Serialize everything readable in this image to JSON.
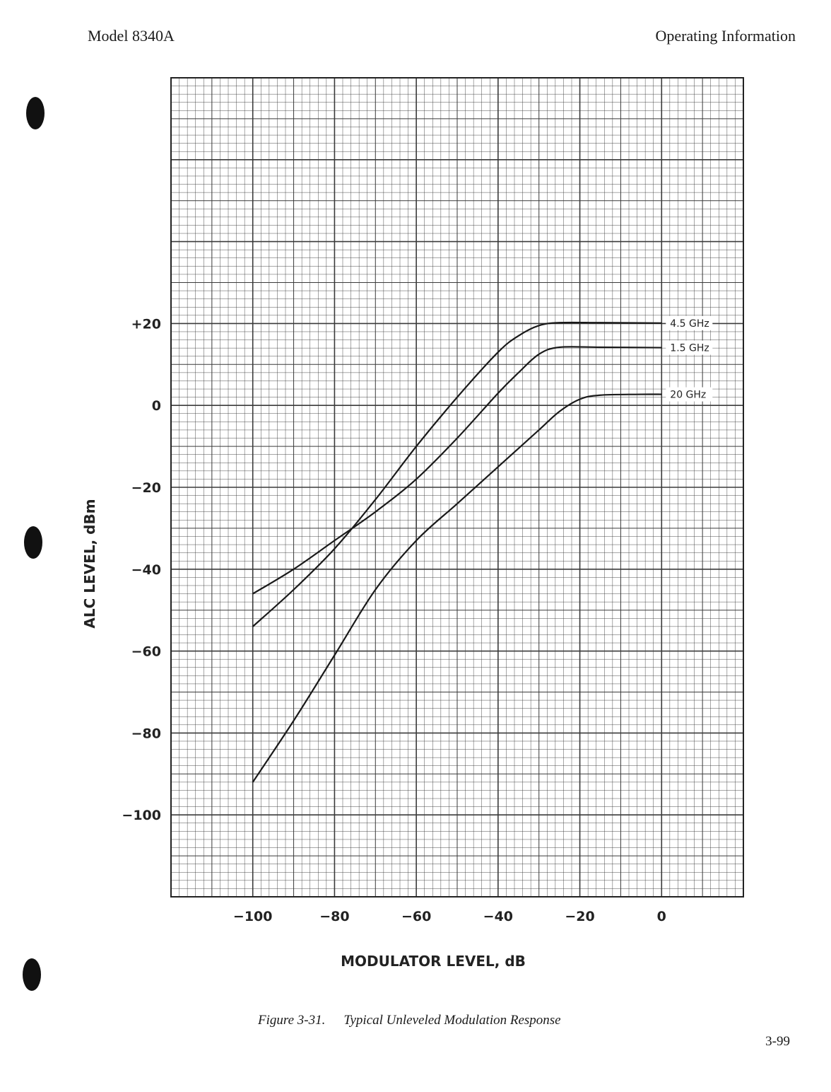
{
  "header": {
    "model": "Model 8340A",
    "section": "Operating Information"
  },
  "caption": {
    "number": "Figure 3-31.",
    "text": "Typical Unleveled Modulation Response"
  },
  "page_number": "3-99",
  "chart_data": {
    "type": "line",
    "title": "",
    "xlabel": "MODULATOR LEVEL, dB",
    "ylabel": "ALC LEVEL, dBm",
    "xlim": [
      -120,
      20
    ],
    "ylim": [
      -120,
      80
    ],
    "x_ticks": [
      -100,
      -80,
      -60,
      -40,
      -20,
      0
    ],
    "x_tick_labels": [
      "−100",
      "−80",
      "−60",
      "−40",
      "−20",
      "0"
    ],
    "y_ticks": [
      20,
      0,
      -20,
      -40,
      -60,
      -80,
      -100
    ],
    "y_tick_labels": [
      "+20",
      "0",
      "−20",
      "−40",
      "−60",
      "−80",
      "−100"
    ],
    "grid": true,
    "line_color": "#1a1a1a",
    "grid_color": "#3a3a3a",
    "series": [
      {
        "name": "4.5 GHz",
        "points": [
          [
            -100,
            -54
          ],
          [
            -90,
            -45
          ],
          [
            -80,
            -35
          ],
          [
            -70,
            -23
          ],
          [
            -60,
            -10
          ],
          [
            -50,
            2
          ],
          [
            -40,
            13
          ],
          [
            -35,
            17
          ],
          [
            -30,
            19.5
          ],
          [
            -25,
            20.2
          ],
          [
            -15,
            20.2
          ],
          [
            0,
            20.1
          ]
        ]
      },
      {
        "name": "1.5 GHz",
        "points": [
          [
            -100,
            -46
          ],
          [
            -90,
            -40
          ],
          [
            -80,
            -33
          ],
          [
            -70,
            -26
          ],
          [
            -60,
            -18
          ],
          [
            -50,
            -8
          ],
          [
            -40,
            3
          ],
          [
            -35,
            8
          ],
          [
            -30,
            12.5
          ],
          [
            -25,
            14.2
          ],
          [
            -15,
            14.2
          ],
          [
            0,
            14.1
          ]
        ]
      },
      {
        "name": "20 GHz",
        "points": [
          [
            -100,
            -92
          ],
          [
            -90,
            -77
          ],
          [
            -80,
            -61
          ],
          [
            -70,
            -45
          ],
          [
            -60,
            -33
          ],
          [
            -50,
            -24
          ],
          [
            -40,
            -15
          ],
          [
            -30,
            -6
          ],
          [
            -25,
            -1.5
          ],
          [
            -20,
            1.5
          ],
          [
            -15,
            2.5
          ],
          [
            -5,
            2.7
          ],
          [
            0,
            2.7
          ]
        ]
      }
    ]
  }
}
